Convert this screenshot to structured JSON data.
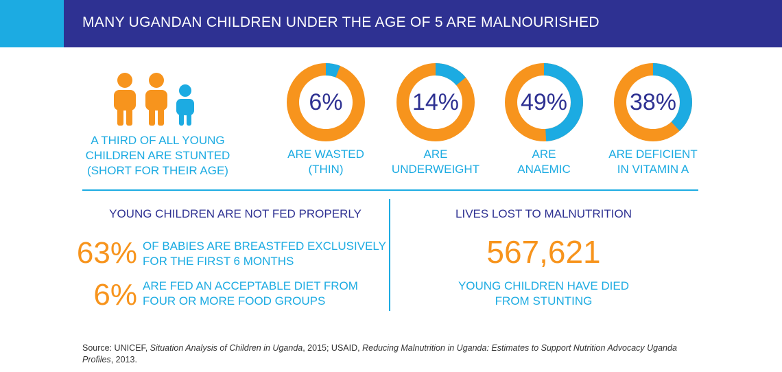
{
  "colors": {
    "header_bg": "#2e3192",
    "header_accent": "#1cabe2",
    "orange": "#f7941d",
    "blue": "#1cabe2",
    "navy": "#2e3192",
    "white": "#ffffff"
  },
  "header": {
    "title": "MANY UGANDAN CHILDREN UNDER THE AGE OF 5 ARE MALNOURISHED"
  },
  "stunted": {
    "icon": "children-icon",
    "line1": "A THIRD OF ALL YOUNG",
    "line2": "CHILDREN ARE STUNTED",
    "line3": "(SHORT FOR THEIR AGE)"
  },
  "chart_data": {
    "type": "pie",
    "style": "donut",
    "items": [
      {
        "value": 6,
        "label": "6%",
        "caption_line1": "ARE WASTED",
        "caption_line2": "(THIN)"
      },
      {
        "value": 14,
        "label": "14%",
        "caption_line1": "ARE",
        "caption_line2": "UNDERWEIGHT"
      },
      {
        "value": 49,
        "label": "49%",
        "caption_line1": "ARE",
        "caption_line2": "ANAEMIC"
      },
      {
        "value": 38,
        "label": "38%",
        "caption_line1": "ARE DEFICIENT",
        "caption_line2": "IN VITAMIN A"
      }
    ],
    "segment_color": "#1cabe2",
    "remainder_color": "#f7941d"
  },
  "feeding": {
    "title": "YOUNG CHILDREN ARE NOT FED PROPERLY",
    "stats": [
      {
        "value": "63%",
        "line1": "OF BABIES ARE BREASTFED EXCLUSIVELY",
        "line2": "FOR THE FIRST 6 MONTHS"
      },
      {
        "value": "6%",
        "line1": "ARE FED AN ACCEPTABLE DIET FROM",
        "line2": "FOUR OR MORE FOOD GROUPS"
      }
    ]
  },
  "lives": {
    "title": "LIVES LOST TO MALNUTRITION",
    "number": "567,621",
    "line1": "YOUNG CHILDREN HAVE DIED",
    "line2": "FROM STUNTING"
  },
  "source": {
    "prefix": "Source: UNICEF, ",
    "title1": "Situation Analysis of Children in Uganda",
    "mid": ", 2015; USAID, ",
    "title2": "Reducing Malnutrition in Uganda: Estimates to Support Nutrition Advocacy Uganda Profiles",
    "suffix": ", 2013."
  }
}
